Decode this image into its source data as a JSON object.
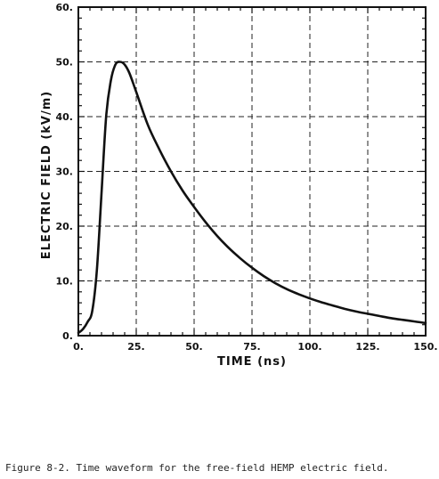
{
  "chart_data": {
    "type": "line",
    "xlabel": "TIME (ns)",
    "ylabel": "ELECTRIC FIELD (kV/m)",
    "xlim": [
      0,
      150
    ],
    "ylim": [
      0,
      60
    ],
    "xticks": [
      0,
      25,
      50,
      75,
      100,
      125,
      150
    ],
    "yticks": [
      0,
      10,
      20,
      30,
      40,
      50,
      60
    ],
    "xtick_labels": [
      "0.",
      "25.",
      "50.",
      "75.",
      "100.",
      "125.",
      "150."
    ],
    "ytick_labels": [
      "0.",
      "10.",
      "20.",
      "30.",
      "40.",
      "50.",
      "60."
    ],
    "grid": true,
    "series": [
      {
        "x": [
          0,
          2,
          4,
          6,
          8,
          10,
          12,
          14,
          16,
          18,
          20,
          22,
          25,
          30,
          35,
          40,
          45,
          50,
          55,
          60,
          65,
          70,
          75,
          80,
          85,
          90,
          95,
          100,
          105,
          110,
          115,
          120,
          125,
          130,
          135,
          140,
          145,
          150
        ],
        "y": [
          0.5,
          1.2,
          2.5,
          4.5,
          12,
          26,
          40,
          46.5,
          49.5,
          50,
          49.5,
          48,
          44.5,
          38.5,
          34,
          30,
          26.5,
          23.5,
          20.7,
          18.2,
          16,
          14.1,
          12.4,
          10.9,
          9.6,
          8.5,
          7.6,
          6.8,
          6.1,
          5.5,
          4.9,
          4.4,
          4.0,
          3.6,
          3.2,
          2.9,
          2.6,
          2.3
        ]
      }
    ]
  },
  "caption": "Figure 8-2.  Time waveform for the free-field HEMP electric field."
}
